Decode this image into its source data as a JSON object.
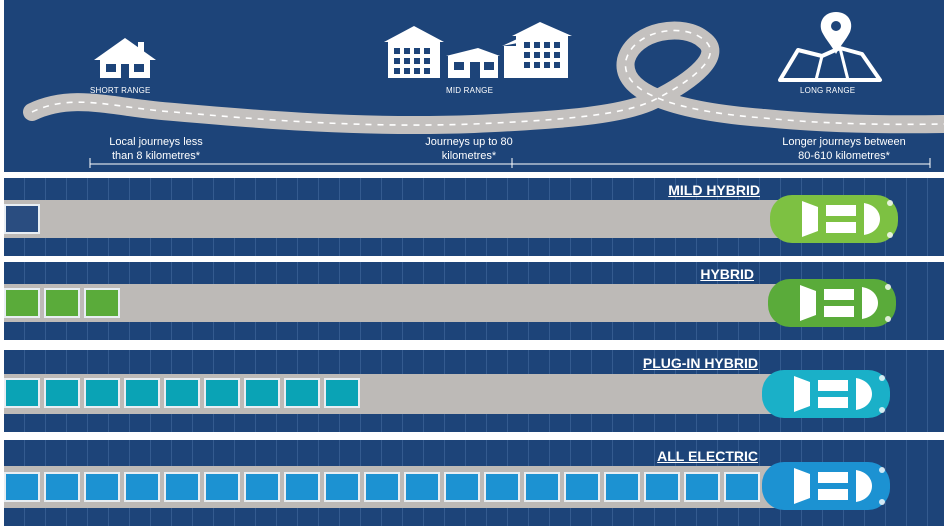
{
  "header": {
    "ranges": [
      {
        "label": "SHORT RANGE",
        "icon": "house-icon",
        "description": "Local journeys less\nthan 8 kilometres*"
      },
      {
        "label": "MID RANGE",
        "icon": "buildings-icon",
        "description": "Journeys  up to 80\nkilometres*"
      },
      {
        "label": "LONG RANGE",
        "icon": "map-pin-icon",
        "description": "Longer journeys between\n80-610 kilometres*"
      }
    ]
  },
  "lanes": [
    {
      "title": "MILD HYBRID",
      "battery_cells": 1,
      "cell_color": "#2a4d80",
      "car_color": "#7dc142",
      "car_icon": "car-icon"
    },
    {
      "title": "HYBRID",
      "battery_cells": 3,
      "cell_color": "#5aab3a",
      "car_color": "#5aab3a",
      "car_icon": "car-icon"
    },
    {
      "title": "PLUG-IN HYBRID",
      "battery_cells": 9,
      "cell_color": "#0aa3b5",
      "car_color": "#1ab0c8",
      "car_icon": "car-icon"
    },
    {
      "title": "ALL ELECTRIC",
      "battery_cells": 19,
      "cell_color": "#1c92d2",
      "car_color": "#1c92d2",
      "car_icon": "car-icon"
    }
  ],
  "colors": {
    "background": "#1d4479",
    "road": "#bdbab7"
  }
}
